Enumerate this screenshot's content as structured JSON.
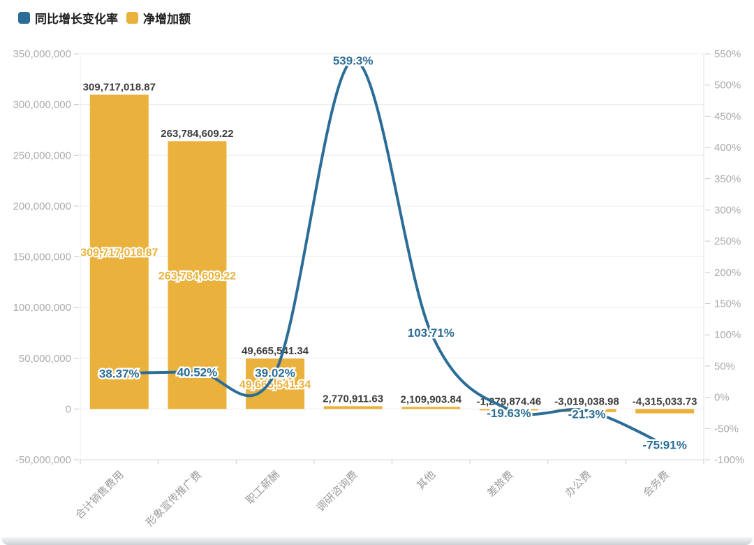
{
  "legend": {
    "items": [
      {
        "label": "同比增长变化率",
        "series": "line"
      },
      {
        "label": "净增加额",
        "series": "bar"
      }
    ]
  },
  "colors": {
    "bar": "#EAB23C",
    "line": "#2B6D96",
    "bar_value_label": "#3D3D3D",
    "axis_label": "#ABABAB",
    "category_label": "#9B9B9B",
    "gridline": "#ECECEC",
    "axis_line": "#D8D8D8",
    "tick": "#C9C9C9"
  },
  "chart_data": {
    "type": "bar+line combo",
    "title": "",
    "legend_position": "top-left",
    "grid": true,
    "smooth_line": true,
    "categories": [
      "合计销售费用",
      "形象宣传推广费",
      "职工薪酬",
      "调研咨询费",
      "其他",
      "差旅费",
      "办公费",
      "会务费"
    ],
    "series": [
      {
        "name": "净增加额",
        "type": "bar",
        "y_axis": "left",
        "values": [
          309717018.87,
          263784609.22,
          49665541.34,
          2770911.63,
          2109903.84,
          -1279874.46,
          -3019038.98,
          -4315033.73
        ],
        "labels": [
          "309,717,018.87",
          "263,784,609.22",
          "49,665,541.34",
          "2,770,911.63",
          "2,109,903.84",
          "-1,279,874.46",
          "-3,019,038.98",
          "-4,315,033.73"
        ]
      },
      {
        "name": "同比增长变化率",
        "type": "line",
        "y_axis": "right",
        "values": [
          38.37,
          40.52,
          39.02,
          539.3,
          103.71,
          -19.63,
          -21.3,
          -75.91
        ],
        "labels": [
          "38.37%",
          "40.52%",
          "39.02%",
          "539.3%",
          "103.71%",
          "-19.63%",
          "-21.3%",
          "-75.91%"
        ]
      }
    ],
    "left_axis": {
      "min": -50000000,
      "max": 350000000,
      "step": 50000000,
      "tick_labels": [
        "350,000,000",
        "300,000,000",
        "250,000,000",
        "200,000,000",
        "150,000,000",
        "100,000,000",
        "50,000,000",
        "0",
        "-50,000,000"
      ]
    },
    "right_axis": {
      "min": -100,
      "max": 550,
      "step": 50,
      "tick_labels": [
        "550%",
        "500%",
        "450%",
        "400%",
        "350%",
        "300%",
        "250%",
        "200%",
        "150%",
        "100%",
        "50%",
        "0%",
        "-50%",
        "-100%"
      ]
    }
  }
}
